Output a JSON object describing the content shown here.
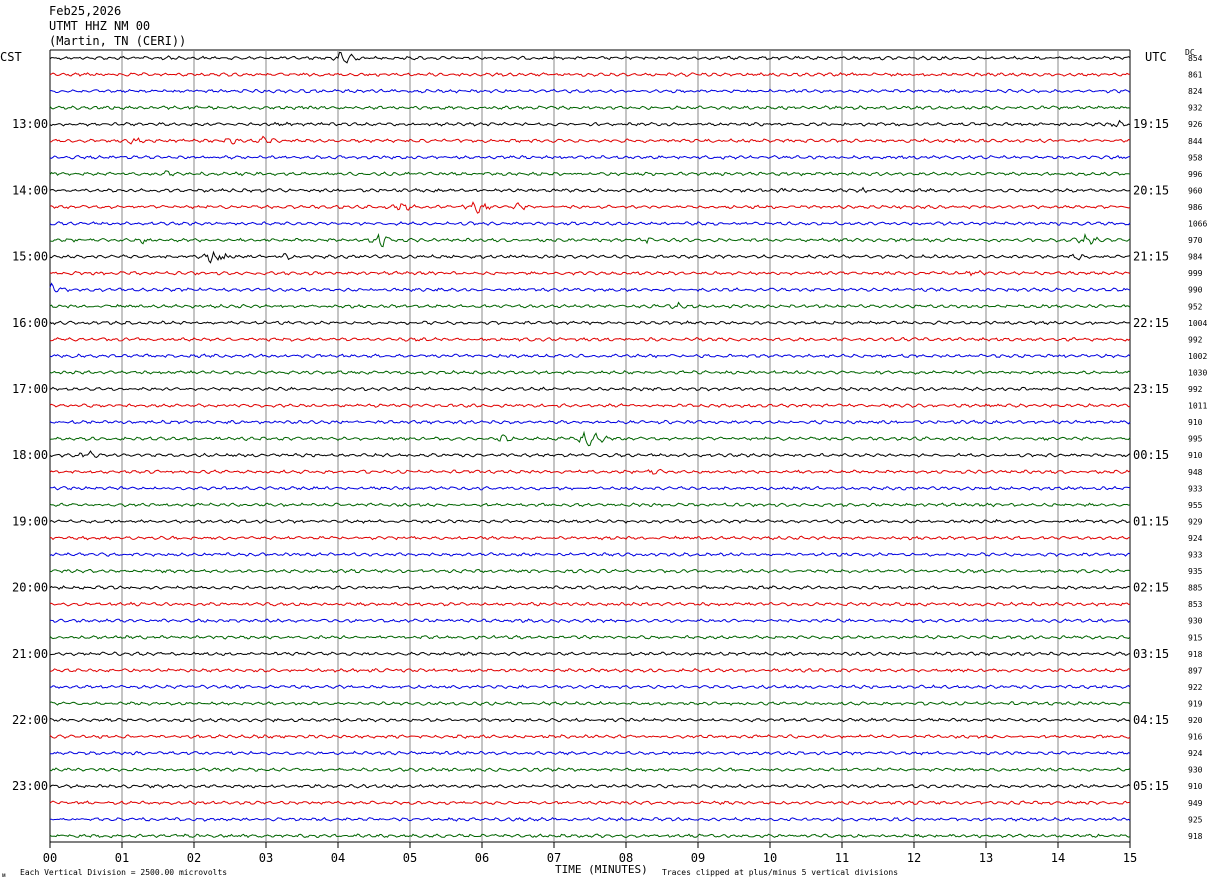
{
  "header": {
    "date": "Feb25,2026",
    "station": "UTMT HHZ NM 00",
    "location": "(Martin, TN (CERI))"
  },
  "left_timezone": "CST",
  "right_timezone": "UTC",
  "dc_label": "DC",
  "footer": {
    "division_note": "Each Vertical Division = 2500.00 microvolts",
    "clip_note": "Traces clipped at plus/minus 5 vertical divisions",
    "mark": "ᴍ"
  },
  "chart_data": {
    "type": "line",
    "title": "UTMT HHZ NM 00",
    "xlabel": "TIME (MINUTES)",
    "xlim": [
      0,
      15
    ],
    "x_ticks": [
      "00",
      "01",
      "02",
      "03",
      "04",
      "05",
      "06",
      "07",
      "08",
      "09",
      "10",
      "11",
      "12",
      "13",
      "14",
      "15"
    ],
    "trace_colors": [
      "#000000",
      "#e00000",
      "#0000e0",
      "#006400"
    ],
    "trace_count": 48,
    "minutes_per_trace": 15,
    "left_hour_labels": [
      "13:00",
      "14:00",
      "15:00",
      "16:00",
      "17:00",
      "18:00",
      "19:00",
      "20:00",
      "21:00",
      "22:00",
      "23:00"
    ],
    "right_hour_labels": [
      "19:15",
      "20:15",
      "21:15",
      "22:15",
      "23:15",
      "00:15",
      "01:15",
      "02:15",
      "03:15",
      "04:15",
      "05:15"
    ],
    "dc_offsets": [
      854,
      861,
      824,
      932,
      926,
      844,
      958,
      996,
      960,
      986,
      1066,
      970,
      984,
      999,
      990,
      952,
      1004,
      992,
      1002,
      1030,
      992,
      1011,
      910,
      995,
      910,
      948,
      933,
      955,
      929,
      924,
      933,
      935,
      885,
      853,
      930,
      915,
      918,
      897,
      922,
      919,
      920,
      916,
      924,
      930,
      910,
      949,
      925,
      918
    ],
    "events": [
      {
        "trace": 0,
        "minute": 4.1,
        "amplitude": 6.5
      },
      {
        "trace": 0,
        "minute": 1.6,
        "amplitude": 2.5
      },
      {
        "trace": 4,
        "minute": 14.8,
        "amplitude": 4
      },
      {
        "trace": 5,
        "minute": 1.2,
        "amplitude": 3.5
      },
      {
        "trace": 5,
        "minute": 3.0,
        "amplitude": 4
      },
      {
        "trace": 5,
        "minute": 2.5,
        "amplitude": 3
      },
      {
        "trace": 7,
        "minute": 1.6,
        "amplitude": 2.5
      },
      {
        "trace": 8,
        "minute": 11.3,
        "amplitude": 3
      },
      {
        "trace": 8,
        "minute": 10.2,
        "amplitude": 2.5
      },
      {
        "trace": 9,
        "minute": 5.9,
        "amplitude": 6.5
      },
      {
        "trace": 9,
        "minute": 4.9,
        "amplitude": 4
      },
      {
        "trace": 9,
        "minute": 6.5,
        "amplitude": 3
      },
      {
        "trace": 11,
        "minute": 4.6,
        "amplitude": 6
      },
      {
        "trace": 11,
        "minute": 14.4,
        "amplitude": 5
      },
      {
        "trace": 11,
        "minute": 1.3,
        "amplitude": 3
      },
      {
        "trace": 11,
        "minute": 8.3,
        "amplitude": 3
      },
      {
        "trace": 12,
        "minute": 2.3,
        "amplitude": 7
      },
      {
        "trace": 12,
        "minute": 3.3,
        "amplitude": 3
      },
      {
        "trace": 12,
        "minute": 14.3,
        "amplitude": 3
      },
      {
        "trace": 13,
        "minute": 12.8,
        "amplitude": 4
      },
      {
        "trace": 14,
        "minute": 0.05,
        "amplitude": 5
      },
      {
        "trace": 15,
        "minute": 8.7,
        "amplitude": 3
      },
      {
        "trace": 23,
        "minute": 6.3,
        "amplitude": 3.5
      },
      {
        "trace": 23,
        "minute": 7.5,
        "amplitude": 8
      },
      {
        "trace": 24,
        "minute": 0.5,
        "amplitude": 4.5
      },
      {
        "trace": 25,
        "minute": 8.4,
        "amplitude": 3
      }
    ]
  }
}
